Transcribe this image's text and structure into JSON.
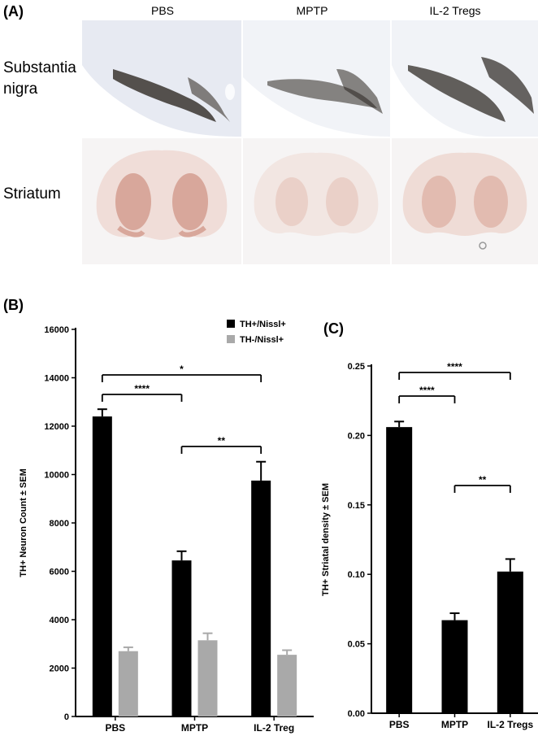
{
  "panel_a": {
    "letter": "(A)",
    "columns": [
      "PBS",
      "MPTP",
      "IL-2 Tregs"
    ],
    "rows": [
      {
        "label_line1": "Substantia",
        "label_line2": "nigra"
      },
      {
        "label_line1": "Striatum",
        "label_line2": ""
      }
    ]
  },
  "panel_b": {
    "letter": "(B)"
  },
  "panel_c": {
    "letter": "(C)"
  },
  "chart_data": [
    {
      "type": "bar",
      "panel": "B",
      "categories": [
        "PBS",
        "MPTP",
        "IL-2 Treg"
      ],
      "series": [
        {
          "name": "TH+/Nissl+",
          "color": "#000000",
          "values": [
            12400,
            6450,
            9750
          ],
          "errors": [
            300,
            380,
            780
          ]
        },
        {
          "name": "TH-/Nissl+",
          "color": "#a9a9a9",
          "values": [
            2700,
            3150,
            2550
          ],
          "errors": [
            160,
            290,
            190
          ]
        }
      ],
      "ylabel": "TH+ Neuron Count ± SEM",
      "ylim": [
        0,
        16000
      ],
      "yticks": [
        "0",
        "2000",
        "4000",
        "6000",
        "8000",
        "10000",
        "12000",
        "14000",
        "16000"
      ],
      "legend_position": "top-right",
      "significance": [
        {
          "from": 0,
          "to": 1,
          "label": "****"
        },
        {
          "from": 0,
          "to": 2,
          "label": "*"
        },
        {
          "from": 1,
          "to": 2,
          "label": "**"
        }
      ]
    },
    {
      "type": "bar",
      "panel": "C",
      "categories": [
        "PBS",
        "MPTP",
        "IL-2 Tregs"
      ],
      "series": [
        {
          "color": "#000000",
          "values": [
            0.206,
            0.067,
            0.102
          ],
          "errors": [
            0.004,
            0.005,
            0.009
          ]
        }
      ],
      "ylabel": "TH+ Striatal density ± SEM",
      "ylim": [
        0,
        0.25
      ],
      "yticks": [
        "0.00",
        "0.05",
        "0.10",
        "0.15",
        "0.20",
        "0.25"
      ],
      "significance": [
        {
          "from": 0,
          "to": 1,
          "label": "****"
        },
        {
          "from": 0,
          "to": 2,
          "label": "****"
        },
        {
          "from": 1,
          "to": 2,
          "label": "**"
        }
      ]
    }
  ]
}
